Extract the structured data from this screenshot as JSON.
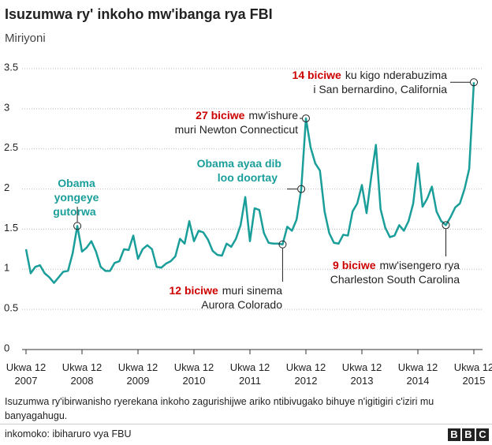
{
  "chart_data": {
    "type": "line",
    "title": "Isuzumwa ry' inkoho mw'ibanga rya FBI",
    "subtitle": "Miriyoni",
    "categories": [
      "Ukwa 12\n2007",
      null,
      null,
      null,
      null,
      null,
      null,
      null,
      null,
      null,
      null,
      null,
      "Ukwa 12\n2008",
      null,
      null,
      null,
      null,
      null,
      null,
      null,
      null,
      null,
      null,
      null,
      "Ukwa 12\n2009",
      null,
      null,
      null,
      null,
      null,
      null,
      null,
      null,
      null,
      null,
      null,
      "Ukwa 12\n2010",
      null,
      null,
      null,
      null,
      null,
      null,
      null,
      null,
      null,
      null,
      null,
      "Ukwa 12\n2011",
      null,
      null,
      null,
      null,
      null,
      null,
      null,
      null,
      null,
      null,
      null,
      "Ukwa 12\n2012",
      null,
      null,
      null,
      null,
      null,
      null,
      null,
      null,
      null,
      null,
      null,
      "Ukwa 12\n2013",
      null,
      null,
      null,
      null,
      null,
      null,
      null,
      null,
      null,
      null,
      null,
      "Ukwa 12\n2014",
      null,
      null,
      null,
      null,
      null,
      null,
      null,
      null,
      null,
      null,
      null,
      "Ukwa 12\n2015"
    ],
    "series": [
      {
        "color": "#1a9e9a",
        "values": [
          1.25,
          0.95,
          1.03,
          1.05,
          0.95,
          0.9,
          0.83,
          0.9,
          0.97,
          0.98,
          1.2,
          1.54,
          1.22,
          1.27,
          1.35,
          1.22,
          1.03,
          0.98,
          0.98,
          1.08,
          1.1,
          1.25,
          1.24,
          1.42,
          1.13,
          1.25,
          1.3,
          1.25,
          1.03,
          1.02,
          1.07,
          1.1,
          1.16,
          1.38,
          1.32,
          1.6,
          1.35,
          1.48,
          1.46,
          1.37,
          1.23,
          1.18,
          1.17,
          1.32,
          1.28,
          1.38,
          1.55,
          1.9,
          1.35,
          1.76,
          1.74,
          1.45,
          1.33,
          1.32,
          1.32,
          1.31,
          1.53,
          1.48,
          1.62,
          2.0,
          2.88,
          2.52,
          2.32,
          2.23,
          1.72,
          1.45,
          1.33,
          1.32,
          1.43,
          1.42,
          1.72,
          1.82,
          2.05,
          1.7,
          2.15,
          2.55,
          1.75,
          1.52,
          1.4,
          1.42,
          1.55,
          1.48,
          1.6,
          1.82,
          2.32,
          1.78,
          1.88,
          2.03,
          1.72,
          1.6,
          1.55,
          1.65,
          1.77,
          1.82,
          2.0,
          2.25,
          3.33
        ]
      }
    ],
    "ylim": [
      0,
      3.5
    ],
    "yticks": [
      0,
      0.5,
      1,
      1.5,
      2,
      2.5,
      3,
      3.5
    ],
    "grid": true,
    "annotations": [
      {
        "bold": "Obama\nyongeye gutorwa"
      },
      {
        "bold": "Obama ayaa dib\nloo doortay"
      },
      {
        "bold": "27 biciwe",
        "text": "mw'ishure\nmuri Newton Connecticut"
      },
      {
        "bold": "14 biciwe",
        "text": "ku kigo nderabuzima\ni San bernardino, California"
      },
      {
        "bold": "12 biciwe",
        "text": "muri sinema\nAurora Colorado"
      },
      {
        "bold": "9 biciwe",
        "text": "mw'isengero rya\nCharleston South Carolina"
      }
    ],
    "note": "Isuzumwa ry'ibirwanisho ryerekana inkoho zagurishijwe ariko ntibivugako bihuye n'igitigiri c'iziri mu banyagahugu.",
    "source": "inkomoko: ibiharuro vya FBU",
    "logo": [
      "B",
      "B",
      "C"
    ]
  }
}
